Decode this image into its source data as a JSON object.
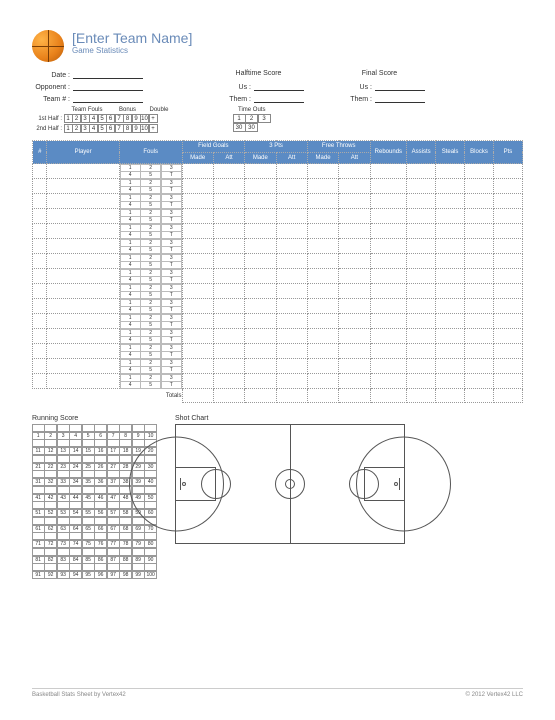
{
  "header": {
    "title": "[Enter Team Name]",
    "subtitle": "Game Statistics"
  },
  "info_labels": {
    "date": "Date :",
    "opponent": "Opponent :",
    "team_num": "Team # :",
    "halftime": "Halftime Score",
    "final": "Final Score",
    "us": "Us :",
    "them": "Them :"
  },
  "fouls_section": {
    "team_fouls": "Team Fouls",
    "bonus": "Bonus",
    "double": "Double",
    "first_half": "1st Half :",
    "second_half": "2nd Half :",
    "cells_a": [
      "1",
      "2",
      "3",
      "4",
      "5",
      "6",
      "7",
      "8",
      "9",
      "10",
      "+"
    ],
    "cells_b": [
      "1",
      "2",
      "3",
      "4",
      "5",
      "6",
      "7",
      "8",
      "9",
      "10",
      "+"
    ]
  },
  "timeouts": {
    "label": "Time Outs",
    "row1": [
      "1",
      "2",
      "3"
    ],
    "row2": [
      "30",
      "30"
    ]
  },
  "stats_columns": {
    "num": "#",
    "player": "Player",
    "fouls": "Fouls",
    "fg": "Field Goals",
    "fg_made": "Made",
    "fg_att": "Att",
    "three": "3 Pts",
    "three_made": "Made",
    "three_att": "Att",
    "ft": "Free Throws",
    "ft_made": "Made",
    "ft_att": "Att",
    "rebounds": "Rebounds",
    "assists": "Assists",
    "steals": "Steals",
    "blocks": "Blocks",
    "pts": "Pts"
  },
  "foul_cells": [
    "1",
    "2",
    "3",
    "4",
    "5",
    "T"
  ],
  "totals_label": "Totals",
  "row_count": 15,
  "running_score": {
    "label": "Running Score",
    "max": 100
  },
  "shot_chart_label": "Shot Chart",
  "footer": {
    "left": "Basketball Stats Sheet by Vertex42",
    "right": "© 2012 Vertex42 LLC"
  },
  "colors": {
    "header_blue": "#5b8bc4",
    "title_blue": "#6a8bb8",
    "ball_light": "#ffb347",
    "ball_dark": "#b85c0a"
  }
}
